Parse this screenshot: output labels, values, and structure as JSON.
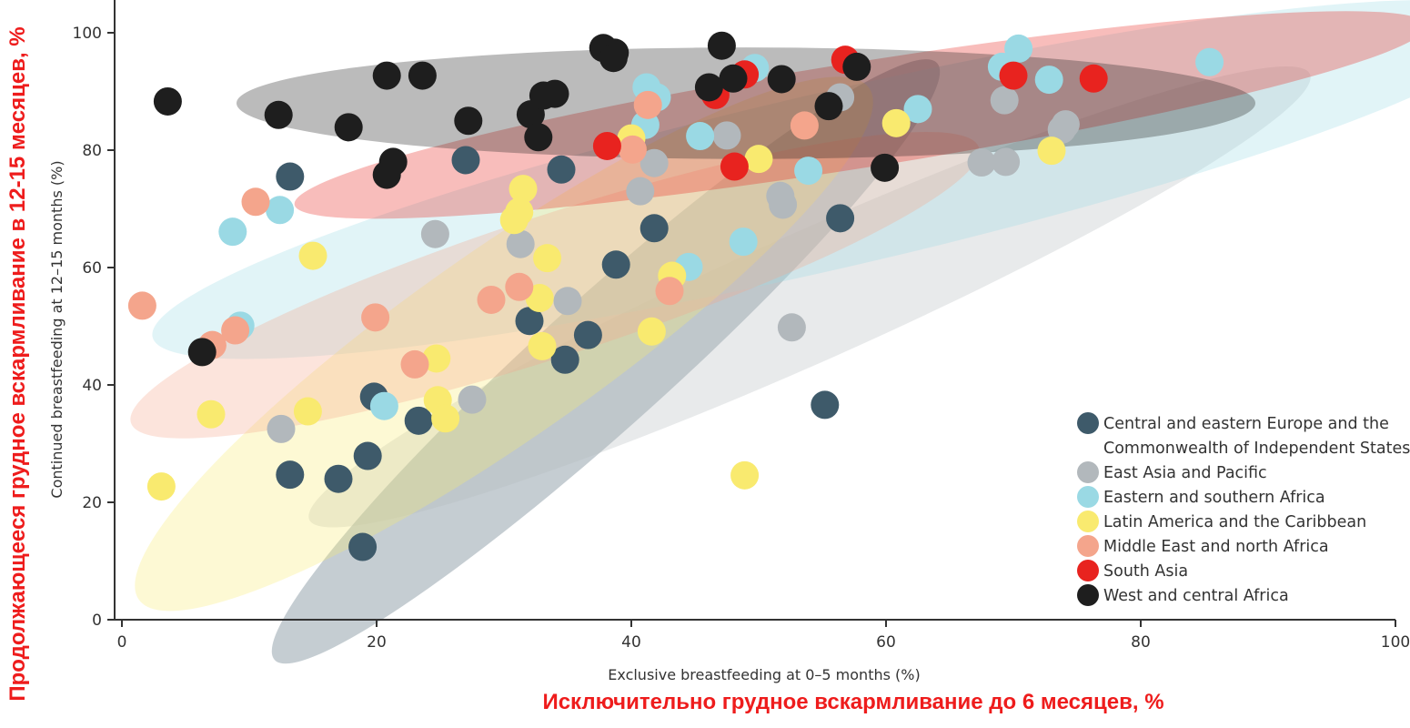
{
  "chart_data": {
    "type": "scatter",
    "xlabel": "Exclusive breastfeeding at 0–5 months (%)",
    "ylabel": "Continued breastfeeding at 12–15 months (%)",
    "xlabel_ru": "Исключительно грудное вскармливание до 6 месяцев, %",
    "ylabel_ru": "Продолжающееся грудное вскармливание в 12-15 месяцев, %",
    "xlim": [
      0,
      100
    ],
    "ylim": [
      0,
      100
    ],
    "xticks": [
      0,
      20,
      40,
      60,
      80,
      100
    ],
    "yticks": [
      0,
      20,
      40,
      60,
      80,
      100
    ],
    "legend_position": "bottom-right",
    "series": [
      {
        "name": "Central and eastern Europe and the Commonwealth of Independent States",
        "legend_lines": [
          "Central and eastern Europe and the",
          "Commonwealth of Independent States"
        ],
        "color": "#3e5a6a",
        "ellipse": {
          "cx": 38,
          "cy": 44,
          "rx": 35,
          "ry": 11,
          "angle": 42
        },
        "points": [
          [
            13.2,
            75.5
          ],
          [
            27,
            78.3
          ],
          [
            34.5,
            76.7
          ],
          [
            41.8,
            66.7
          ],
          [
            38.8,
            60.5
          ],
          [
            32,
            50.9
          ],
          [
            36.6,
            48.5
          ],
          [
            34.8,
            44.3
          ],
          [
            19.8,
            38
          ],
          [
            23.3,
            33.9
          ],
          [
            19.3,
            27.9
          ],
          [
            13.2,
            24.7
          ],
          [
            17,
            24
          ],
          [
            18.9,
            12.4
          ],
          [
            56.4,
            68.4
          ],
          [
            55.2,
            36.6
          ]
        ]
      },
      {
        "name": "East Asia and Pacific",
        "legend_lines": [
          "East Asia and Pacific"
        ],
        "color": "#b2b8bc",
        "ellipse": {
          "cx": 54,
          "cy": 55,
          "rx": 43,
          "ry": 11,
          "angle": 24
        },
        "points": [
          [
            24.6,
            65.7
          ],
          [
            31.3,
            64
          ],
          [
            35,
            54.3
          ],
          [
            27.5,
            37.5
          ],
          [
            12.5,
            32.5
          ],
          [
            40.7,
            73
          ],
          [
            41.8,
            77.8
          ],
          [
            47.5,
            82.5
          ],
          [
            51.7,
            72.2
          ],
          [
            51.9,
            70.7
          ],
          [
            52.6,
            49.8
          ],
          [
            56.4,
            89
          ],
          [
            67.5,
            77.9
          ],
          [
            69.4,
            78
          ],
          [
            69.3,
            88.5
          ],
          [
            73.8,
            83.5
          ],
          [
            74.1,
            84.4
          ]
        ]
      },
      {
        "name": "Eastern and southern Africa",
        "legend_lines": [
          "Eastern and southern Africa"
        ],
        "color": "#9ad9e4",
        "ellipse": {
          "cx": 56,
          "cy": 75,
          "rx": 55,
          "ry": 15,
          "angle": 13
        },
        "points": [
          [
            8.7,
            66.1
          ],
          [
            12.4,
            69.8
          ],
          [
            9.3,
            50.1
          ],
          [
            20.6,
            36.4
          ],
          [
            41.1,
            84.3
          ],
          [
            41.2,
            90.7
          ],
          [
            42,
            89
          ],
          [
            45.4,
            82.4
          ],
          [
            49.7,
            94
          ],
          [
            53.9,
            76.5
          ],
          [
            48.8,
            64.4
          ],
          [
            44.5,
            60.1
          ],
          [
            62.5,
            87
          ],
          [
            69.1,
            94.2
          ],
          [
            70.4,
            97.3
          ],
          [
            72.8,
            92
          ],
          [
            85.4,
            95
          ]
        ]
      },
      {
        "name": "Latin America and the Caribbean",
        "legend_lines": [
          "Latin America and the Caribbean"
        ],
        "color": "#f9ea6f",
        "ellipse": {
          "cx": 30,
          "cy": 47,
          "rx": 35,
          "ry": 16,
          "angle": 35
        },
        "points": [
          [
            31.5,
            73.4
          ],
          [
            31.2,
            69.5
          ],
          [
            30.8,
            68.1
          ],
          [
            15,
            62
          ],
          [
            33.4,
            61.6
          ],
          [
            32.8,
            54.8
          ],
          [
            33,
            46.6
          ],
          [
            24.7,
            44.5
          ],
          [
            24.8,
            37.4
          ],
          [
            25.4,
            34.3
          ],
          [
            14.6,
            35.5
          ],
          [
            7,
            35
          ],
          [
            3.1,
            22.7
          ],
          [
            40,
            82
          ],
          [
            41.6,
            49.1
          ],
          [
            43.2,
            58.6
          ],
          [
            50,
            78.5
          ],
          [
            60.8,
            84.6
          ],
          [
            73,
            79.9
          ],
          [
            48.9,
            24.6
          ]
        ]
      },
      {
        "name": "Middle East and north Africa",
        "legend_lines": [
          "Middle East and north Africa"
        ],
        "color": "#f4a58c",
        "ellipse": {
          "cx": 34,
          "cy": 57,
          "rx": 35,
          "ry": 12,
          "angle": 18
        },
        "points": [
          [
            1.6,
            53.5
          ],
          [
            7.1,
            46.8
          ],
          [
            8.9,
            49.3
          ],
          [
            10.5,
            71.2
          ],
          [
            19.9,
            51.5
          ],
          [
            23,
            43.5
          ],
          [
            29,
            54.5
          ],
          [
            31.2,
            56.7
          ],
          [
            40.1,
            80.1
          ],
          [
            41.3,
            87.7
          ],
          [
            43,
            56
          ],
          [
            53.6,
            84.2
          ]
        ]
      },
      {
        "name": "South Asia",
        "legend_lines": [
          "South Asia"
        ],
        "color": "#e8231f",
        "ellipse": {
          "cx": 58,
          "cy": 86,
          "rx": 45,
          "ry": 9,
          "angle": 9
        },
        "points": [
          [
            38.1,
            80.7
          ],
          [
            46.6,
            89.4
          ],
          [
            48.1,
            77.2
          ],
          [
            48.9,
            92.9
          ],
          [
            56.8,
            95.4
          ],
          [
            70,
            92.7
          ],
          [
            76.3,
            92.2
          ]
        ]
      },
      {
        "name": "West and central Africa",
        "legend_lines": [
          "West and central Africa"
        ],
        "color": "#1e1e1e",
        "ellipse": {
          "cx": 49,
          "cy": 88,
          "rx": 40,
          "ry": 9.5,
          "angle": 0
        },
        "points": [
          [
            3.6,
            88.3
          ],
          [
            12.3,
            86
          ],
          [
            17.8,
            83.9
          ],
          [
            20.8,
            92.7
          ],
          [
            23.6,
            92.7
          ],
          [
            21.3,
            78
          ],
          [
            20.8,
            75.8
          ],
          [
            27.2,
            85
          ],
          [
            32.1,
            86.1
          ],
          [
            32.7,
            82.2
          ],
          [
            33.1,
            89.3
          ],
          [
            34,
            89.6
          ],
          [
            37.8,
            97.4
          ],
          [
            38.7,
            96.6
          ],
          [
            38.6,
            95.7
          ],
          [
            47.1,
            97.8
          ],
          [
            46.1,
            90.7
          ],
          [
            48,
            92.2
          ],
          [
            51.8,
            92.1
          ],
          [
            55.5,
            87.5
          ],
          [
            57.7,
            94.2
          ],
          [
            59.9,
            77
          ],
          [
            6.3,
            45.6
          ]
        ]
      }
    ]
  }
}
